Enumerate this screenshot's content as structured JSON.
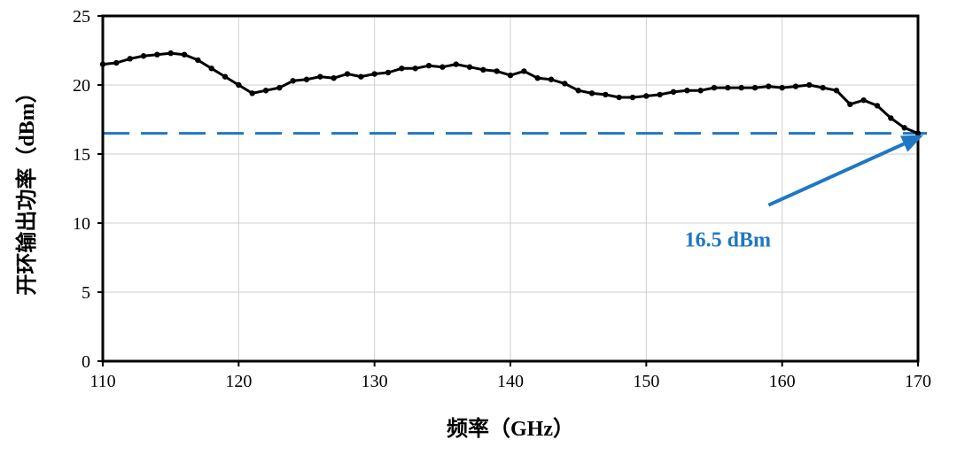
{
  "chart_data": {
    "type": "line",
    "xlabel": "频率（GHz）",
    "ylabel": "开环输出功率（dBm）",
    "xlim": [
      110,
      170
    ],
    "ylim": [
      0,
      25
    ],
    "xticks": [
      110,
      120,
      130,
      140,
      150,
      160,
      170
    ],
    "yticks": [
      0,
      5,
      10,
      15,
      20,
      25
    ],
    "grid": true,
    "legend": "none",
    "colors": {
      "series": "#000000",
      "reference": "#1f77c4",
      "annotation": "#1f77c4"
    },
    "series": [
      {
        "x": [
          110,
          111,
          112,
          113,
          114,
          115,
          116,
          117,
          118,
          119,
          120,
          121,
          122,
          123,
          124,
          125,
          126,
          127,
          128,
          129,
          130,
          131,
          132,
          133,
          134,
          135,
          136,
          137,
          138,
          139,
          140,
          141,
          142,
          143,
          144,
          145,
          146,
          147,
          148,
          149,
          150,
          151,
          152,
          153,
          154,
          155,
          156,
          157,
          158,
          159,
          160,
          161,
          162,
          163,
          164,
          165,
          166,
          167,
          168,
          169,
          170
        ],
        "y": [
          21.5,
          21.6,
          21.9,
          22.1,
          22.2,
          22.3,
          22.2,
          21.8,
          21.2,
          20.6,
          20.0,
          19.4,
          19.6,
          19.8,
          20.3,
          20.4,
          20.6,
          20.5,
          20.8,
          20.6,
          20.8,
          20.9,
          21.2,
          21.2,
          21.4,
          21.3,
          21.5,
          21.3,
          21.1,
          21.0,
          20.7,
          21.0,
          20.5,
          20.4,
          20.1,
          19.6,
          19.4,
          19.3,
          19.1,
          19.1,
          19.2,
          19.3,
          19.5,
          19.6,
          19.6,
          19.8,
          19.8,
          19.8,
          19.8,
          19.9,
          19.8,
          19.9,
          20.0,
          19.8,
          19.6,
          18.6,
          18.9,
          18.5,
          17.6,
          16.9,
          16.5
        ]
      }
    ],
    "reference_line": {
      "y": 16.5,
      "style": "dashed"
    },
    "annotation": {
      "text": "16.5 dBm",
      "arrow_to": [
        170,
        16.5
      ],
      "arrow_from": [
        159,
        11.3
      ],
      "label_at": [
        156,
        8.8
      ]
    }
  }
}
